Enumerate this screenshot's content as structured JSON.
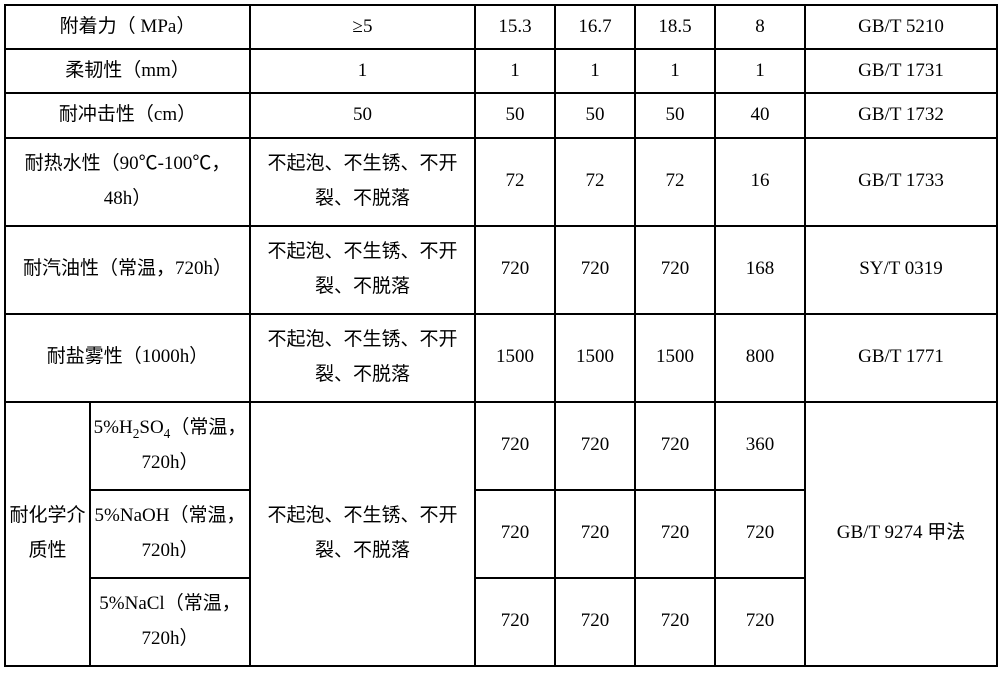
{
  "table": {
    "background_color": "#ffffff",
    "border_color": "#000000",
    "text_color": "#000000",
    "font_size": 19,
    "rows": [
      {
        "name": "附着力（ MPa）",
        "requirement": "≥5",
        "v1": "15.3",
        "v2": "16.7",
        "v3": "18.5",
        "v4": "8",
        "standard": "GB/T 5210"
      },
      {
        "name": "柔韧性（mm）",
        "requirement": "1",
        "v1": "1",
        "v2": "1",
        "v3": "1",
        "v4": "1",
        "standard": "GB/T 1731"
      },
      {
        "name": "耐冲击性（cm）",
        "requirement": "50",
        "v1": "50",
        "v2": "50",
        "v3": "50",
        "v4": "40",
        "standard": "GB/T 1732"
      },
      {
        "name": "耐热水性（90℃-100℃，48h）",
        "requirement": "不起泡、不生锈、不开裂、不脱落",
        "v1": "72",
        "v2": "72",
        "v3": "72",
        "v4": "16",
        "standard": "GB/T 1733"
      },
      {
        "name": "耐汽油性（常温，720h）",
        "requirement": "不起泡、不生锈、不开裂、不脱落",
        "v1": "720",
        "v2": "720",
        "v3": "720",
        "v4": "168",
        "standard": "SY/T 0319"
      },
      {
        "name": "耐盐雾性（1000h）",
        "requirement": "不起泡、不生锈、不开裂、不脱落",
        "v1": "1500",
        "v2": "1500",
        "v3": "1500",
        "v4": "800",
        "standard": "GB/T 1771"
      }
    ],
    "chemical": {
      "group_name": "耐化学介质性",
      "requirement": "不起泡、不生锈、不开裂、不脱落",
      "standard": "GB/T 9274 甲法",
      "subrows": [
        {
          "name_html": "5%H<sub>2</sub>SO<sub>4</sub>（常温，720h）",
          "v1": "720",
          "v2": "720",
          "v3": "720",
          "v4": "360"
        },
        {
          "name_html": "5%NaOH（常温，720h）",
          "v1": "720",
          "v2": "720",
          "v3": "720",
          "v4": "720"
        },
        {
          "name_html": "5%NaCl（常温，720h）",
          "v1": "720",
          "v2": "720",
          "v3": "720",
          "v4": "720"
        }
      ]
    }
  }
}
